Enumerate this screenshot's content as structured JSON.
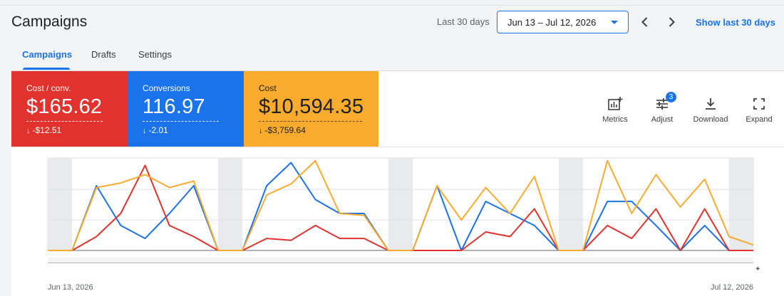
{
  "header": {
    "title": "Campaigns",
    "range_label": "Last 30 days",
    "date_range": "Jun 13 – Jul 12, 2026",
    "show_link": "Show last 30 days"
  },
  "tabs": [
    {
      "label": "Campaigns",
      "active": true
    },
    {
      "label": "Drafts",
      "active": false
    },
    {
      "label": "Settings",
      "active": false
    }
  ],
  "metrics": [
    {
      "label": "Cost / conv.",
      "value": "$165.62",
      "delta": "-$12.51",
      "color": "#e2322d"
    },
    {
      "label": "Conversions",
      "value": "116.97",
      "delta": "-2.01",
      "color": "#1a73e8"
    },
    {
      "label": "Cost",
      "value": "$10,594.35",
      "delta": "-$3,759.64",
      "color": "#f9ab2d",
      "text_color": "#202124"
    }
  ],
  "toolbar": {
    "metrics_label": "Metrics",
    "adjust_label": "Adjust",
    "adjust_badge": "3",
    "download_label": "Download",
    "expand_label": "Expand"
  },
  "chart_data": {
    "type": "line",
    "x_start_label": "Jun 13, 2026",
    "x_end_label": "Jul 12, 2026",
    "grid": true,
    "weekend_shading": true,
    "y_range": [
      0,
      100
    ],
    "series": [
      {
        "color": "#1a73e8",
        "values": [
          0,
          0,
          70,
          27,
          13,
          40,
          70,
          0,
          0,
          70,
          95,
          55,
          40,
          40,
          0,
          0,
          70,
          0,
          53,
          40,
          27,
          0,
          0,
          53,
          53,
          27,
          0,
          27,
          0,
          0
        ]
      },
      {
        "color": "#e2322d",
        "values": [
          0,
          0,
          15,
          40,
          92,
          27,
          15,
          0,
          0,
          13,
          11,
          27,
          13,
          13,
          0,
          0,
          0,
          0,
          20,
          15,
          45,
          0,
          0,
          27,
          13,
          45,
          0,
          45,
          0,
          0
        ]
      },
      {
        "color": "#f9ab2d",
        "values": [
          0,
          0,
          68,
          73,
          82,
          68,
          75,
          0,
          0,
          60,
          72,
          97,
          40,
          38,
          0,
          0,
          70,
          33,
          68,
          40,
          80,
          0,
          0,
          97,
          40,
          82,
          47,
          77,
          15,
          6
        ]
      }
    ]
  }
}
